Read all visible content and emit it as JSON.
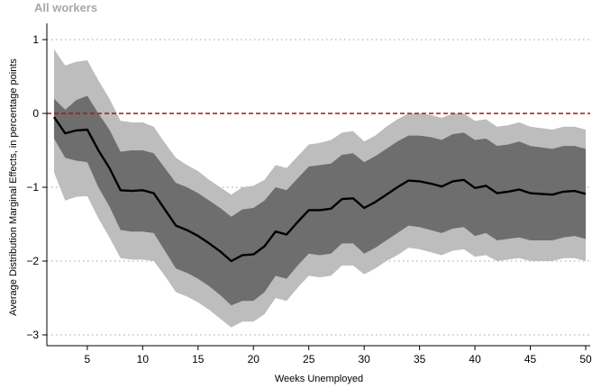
{
  "chart_data": {
    "type": "line",
    "title": "All workers",
    "xlabel": "Weeks Unemployed",
    "ylabel": "Average Distribution Marginal Effects, in percentage points",
    "xlim": [
      2,
      50
    ],
    "ylim": [
      -3,
      1
    ],
    "xticks": [
      "5",
      "10",
      "15",
      "20",
      "25",
      "30",
      "35",
      "40",
      "45",
      "50"
    ],
    "yticks": [
      "1",
      "0",
      "−1",
      "−2",
      "−3"
    ],
    "grid": "horizontal dotted",
    "reference_line": {
      "y": 0,
      "style": "dashed",
      "color": "#a0161b"
    },
    "colors": {
      "line": "#000000",
      "inner_band": "#6e6e6e",
      "outer_band": "#bdbdbd",
      "title": "#a8a8a8"
    },
    "x": [
      2,
      3,
      4,
      5,
      6,
      7,
      8,
      9,
      10,
      11,
      12,
      13,
      14,
      15,
      16,
      17,
      18,
      19,
      20,
      21,
      22,
      23,
      24,
      25,
      26,
      27,
      28,
      29,
      30,
      31,
      32,
      33,
      34,
      35,
      36,
      37,
      38,
      39,
      40,
      41,
      42,
      43,
      44,
      45,
      46,
      47,
      48,
      49,
      50
    ],
    "series": [
      {
        "values": [
          -0.05,
          -0.27,
          -0.23,
          -0.22,
          -0.5,
          -0.74,
          -1.04,
          -1.05,
          -1.04,
          -1.08,
          -1.3,
          -1.52,
          -1.58,
          -1.66,
          -1.76,
          -1.87,
          -2.0,
          -1.92,
          -1.91,
          -1.8,
          -1.6,
          -1.64,
          -1.47,
          -1.31,
          -1.31,
          -1.29,
          -1.16,
          -1.15,
          -1.28,
          -1.2,
          -1.1,
          -1.0,
          -0.91,
          -0.92,
          -0.95,
          -0.99,
          -0.92,
          -0.9,
          -1.01,
          -0.98,
          -1.08,
          -1.06,
          -1.03,
          -1.08,
          -1.09,
          -1.1,
          -1.06,
          -1.05,
          -1.09
        ]
      }
    ],
    "inner_band": {
      "upper": [
        0.2,
        0.05,
        0.18,
        0.24,
        0.0,
        -0.22,
        -0.52,
        -0.5,
        -0.5,
        -0.54,
        -0.74,
        -0.94,
        -1.0,
        -1.08,
        -1.18,
        -1.28,
        -1.4,
        -1.3,
        -1.28,
        -1.18,
        -1.0,
        -1.04,
        -0.88,
        -0.72,
        -0.7,
        -0.68,
        -0.56,
        -0.54,
        -0.66,
        -0.58,
        -0.48,
        -0.38,
        -0.3,
        -0.3,
        -0.32,
        -0.36,
        -0.28,
        -0.26,
        -0.36,
        -0.34,
        -0.44,
        -0.42,
        -0.38,
        -0.44,
        -0.46,
        -0.48,
        -0.44,
        -0.44,
        -0.48
      ],
      "lower": [
        -0.34,
        -0.6,
        -0.64,
        -0.66,
        -1.0,
        -1.26,
        -1.58,
        -1.6,
        -1.6,
        -1.62,
        -1.86,
        -2.1,
        -2.16,
        -2.24,
        -2.34,
        -2.46,
        -2.6,
        -2.54,
        -2.54,
        -2.42,
        -2.2,
        -2.24,
        -2.06,
        -1.9,
        -1.92,
        -1.9,
        -1.76,
        -1.76,
        -1.9,
        -1.82,
        -1.72,
        -1.62,
        -1.52,
        -1.54,
        -1.58,
        -1.62,
        -1.56,
        -1.54,
        -1.66,
        -1.62,
        -1.72,
        -1.7,
        -1.68,
        -1.72,
        -1.72,
        -1.72,
        -1.68,
        -1.66,
        -1.7
      ]
    },
    "outer_band": {
      "upper": [
        0.87,
        0.65,
        0.7,
        0.72,
        0.45,
        0.2,
        -0.1,
        -0.12,
        -0.12,
        -0.18,
        -0.4,
        -0.6,
        -0.7,
        -0.78,
        -0.9,
        -1.0,
        -1.1,
        -1.0,
        -0.98,
        -0.9,
        -0.7,
        -0.74,
        -0.58,
        -0.42,
        -0.4,
        -0.36,
        -0.26,
        -0.24,
        -0.38,
        -0.3,
        -0.18,
        -0.08,
        0.0,
        0.0,
        -0.02,
        -0.06,
        0.0,
        0.0,
        -0.1,
        -0.08,
        -0.18,
        -0.16,
        -0.12,
        -0.18,
        -0.2,
        -0.22,
        -0.18,
        -0.18,
        -0.22
      ],
      "lower": [
        -0.8,
        -1.18,
        -1.13,
        -1.12,
        -1.42,
        -1.68,
        -1.96,
        -1.98,
        -1.98,
        -2.0,
        -2.2,
        -2.42,
        -2.48,
        -2.56,
        -2.66,
        -2.78,
        -2.9,
        -2.82,
        -2.82,
        -2.72,
        -2.5,
        -2.54,
        -2.36,
        -2.2,
        -2.22,
        -2.2,
        -2.06,
        -2.06,
        -2.18,
        -2.1,
        -2.0,
        -1.92,
        -1.82,
        -1.84,
        -1.88,
        -1.92,
        -1.86,
        -1.84,
        -1.94,
        -1.92,
        -2.0,
        -1.98,
        -1.96,
        -2.0,
        -2.0,
        -2.0,
        -1.96,
        -1.96,
        -2.0
      ]
    }
  }
}
